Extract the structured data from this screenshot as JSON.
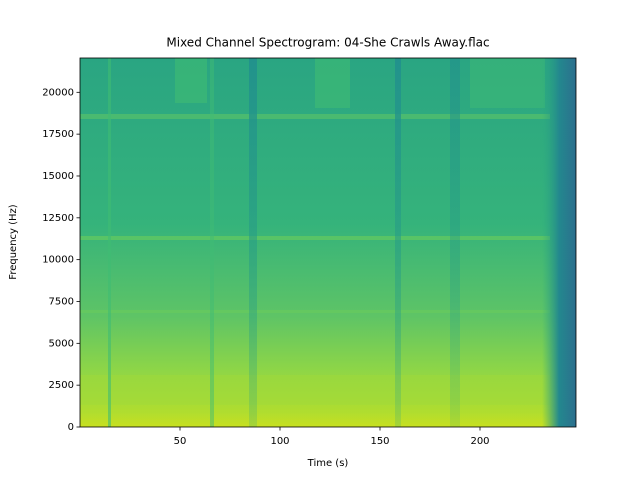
{
  "chart_data": {
    "type": "spectrogram",
    "title": "Mixed Channel Spectrogram: 04-She Crawls Away.flac",
    "xlabel": "Time (s)",
    "ylabel": "Frequency (Hz)",
    "xlim": [
      0,
      248
    ],
    "ylim": [
      0,
      22050
    ],
    "xticks": [
      50,
      100,
      150,
      200
    ],
    "yticks": [
      0,
      2500,
      5000,
      7500,
      10000,
      12500,
      15000,
      17500,
      20000
    ]
  }
}
